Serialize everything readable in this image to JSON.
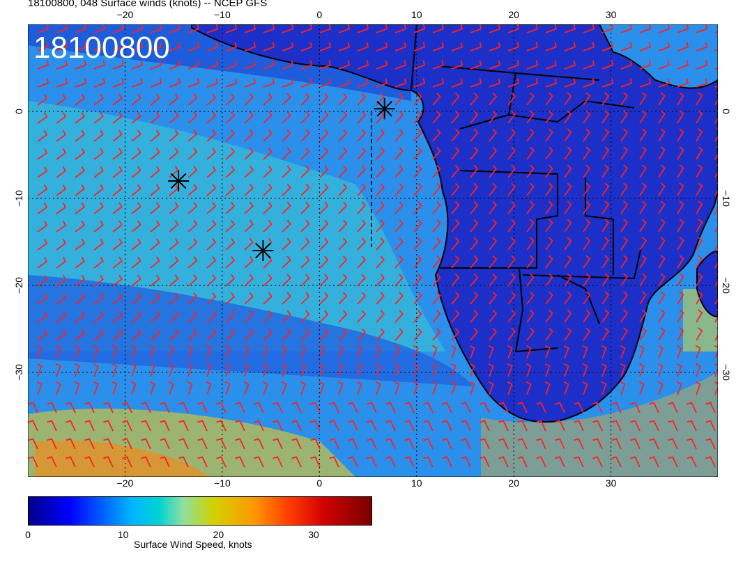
{
  "header": {
    "title": "18100800, 048 Surface winds (knots) -- NCEP GFS"
  },
  "map": {
    "date_stamp": "18100800",
    "lon_ticks": [
      "−20",
      "−10",
      "0",
      "10",
      "20",
      "30"
    ],
    "lat_ticks": [
      "0",
      "−10",
      "−20",
      "−30"
    ],
    "lon_range": [
      -30,
      41
    ],
    "lat_range": [
      -42,
      10
    ],
    "markers": [
      {
        "lon": -14.5,
        "lat": -8.0
      },
      {
        "lon": -5.8,
        "lat": -16.0
      },
      {
        "lon": 6.7,
        "lat": 0.3
      }
    ],
    "barb_color": "#ff2020",
    "land_color": "#2040d8",
    "ocean_color": "#30a0f0"
  },
  "colorbar": {
    "label": "Surface Wind Speed, knots",
    "ticks": [
      "0",
      "10",
      "20",
      "30"
    ],
    "range": [
      0,
      36
    ]
  }
}
